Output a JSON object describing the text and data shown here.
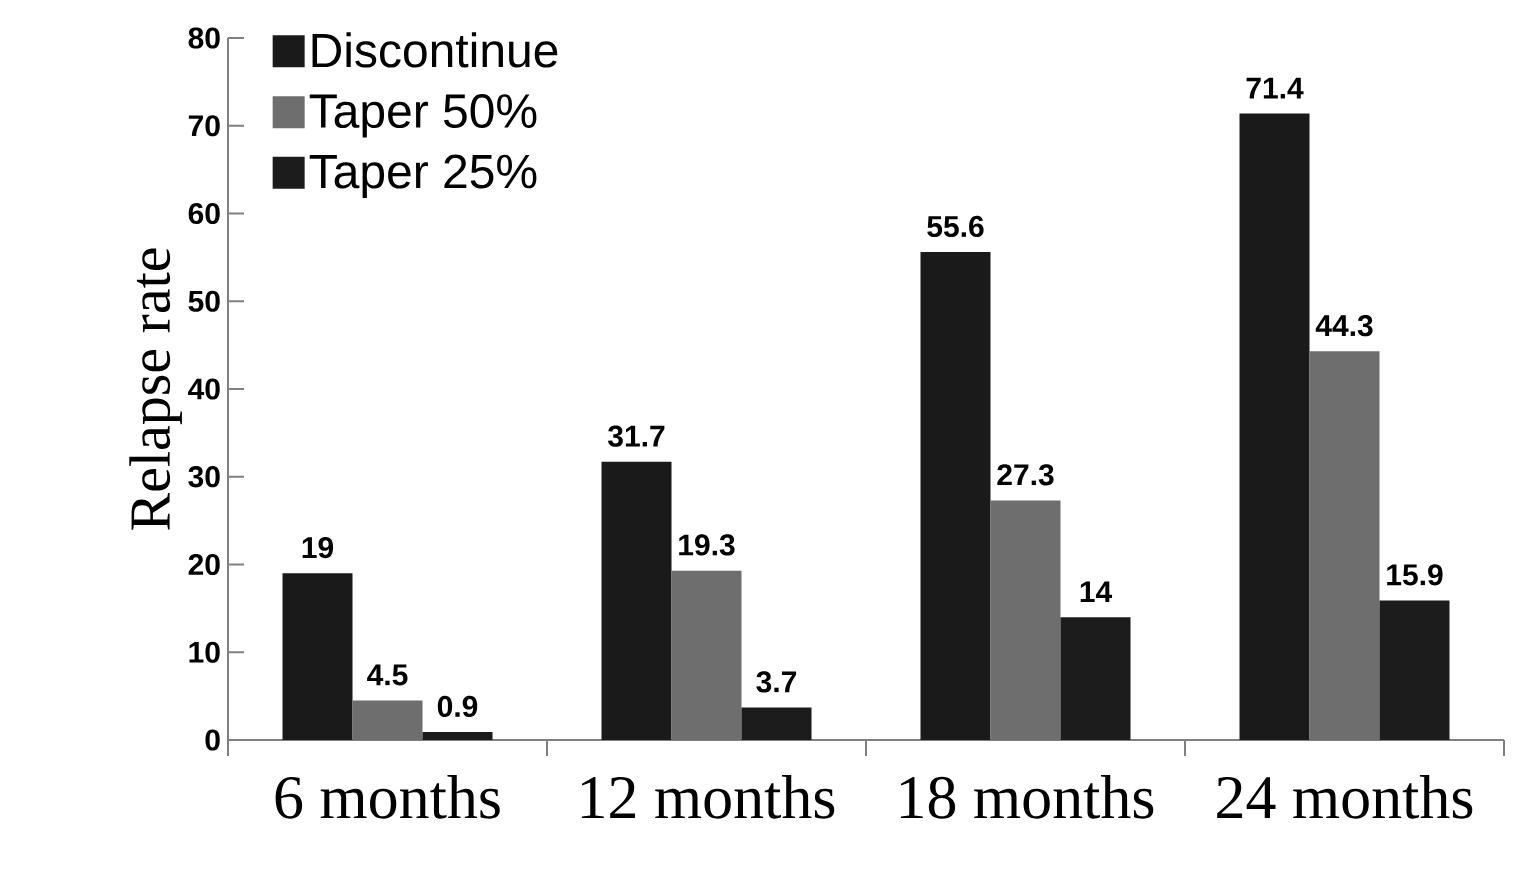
{
  "chart_data": {
    "type": "bar",
    "ylabel": "Relapse rate",
    "categories": [
      "6 months",
      "12 months",
      "18 months",
      "24 months"
    ],
    "series": [
      {
        "name": "Discontinue",
        "color": "#1a1a1a",
        "values": [
          19,
          31.7,
          55.6,
          71.4
        ]
      },
      {
        "name": "Taper 50%",
        "color": "#6e6e6e",
        "values": [
          4.5,
          19.3,
          27.3,
          44.3
        ]
      },
      {
        "name": "Taper 25%",
        "color": "#1c1c1c",
        "values": [
          0.9,
          3.7,
          14,
          15.9
        ]
      }
    ],
    "ylim": [
      0,
      80
    ],
    "yticks": [
      0,
      10,
      20,
      30,
      40,
      50,
      60,
      70,
      80
    ],
    "data_labels": true,
    "legend": "top left",
    "grid": false
  }
}
